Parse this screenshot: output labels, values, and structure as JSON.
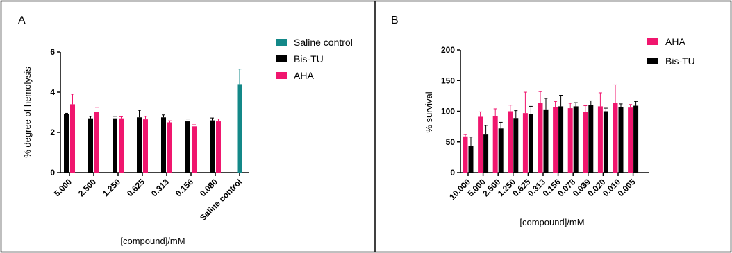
{
  "colors": {
    "aha": "#f0166e",
    "bis_tu": "#000000",
    "saline": "#138888",
    "border": "#000000"
  },
  "chart_data": [
    {
      "type": "bar",
      "panel": "A",
      "xlabel": "[compound]/mM",
      "ylabel": "% degree of hemolysis",
      "ylim": [
        0,
        6
      ],
      "yticks": [
        "0",
        "2",
        "4",
        "6"
      ],
      "grid": false,
      "legend_position": "right",
      "categories": [
        "5.000",
        "2.500",
        "1.250",
        "0.625",
        "0.313",
        "0.156",
        "0.080",
        "Saline control"
      ],
      "series": [
        {
          "name": "Saline control",
          "color": "#138888",
          "values": [
            null,
            null,
            null,
            null,
            null,
            null,
            null,
            4.4
          ],
          "errors": [
            null,
            null,
            null,
            null,
            null,
            null,
            null,
            0.75
          ]
        },
        {
          "name": "Bis-TU",
          "color": "#000000",
          "values": [
            2.9,
            2.7,
            2.7,
            2.75,
            2.75,
            2.55,
            2.6,
            null
          ],
          "errors": [
            0.05,
            0.1,
            0.1,
            0.35,
            0.12,
            0.12,
            0.12,
            null
          ]
        },
        {
          "name": "AHA",
          "color": "#f0166e",
          "values": [
            3.4,
            3.0,
            2.7,
            2.65,
            2.5,
            2.3,
            2.55,
            null
          ],
          "errors": [
            0.5,
            0.25,
            0.08,
            0.15,
            0.08,
            0.08,
            0.12,
            null
          ]
        }
      ]
    },
    {
      "type": "bar",
      "panel": "B",
      "xlabel": "[compound]/mM",
      "ylabel": "% survival",
      "ylim": [
        0,
        200
      ],
      "yticks": [
        "0",
        "50",
        "100",
        "150",
        "200"
      ],
      "grid": false,
      "legend_position": "right",
      "categories": [
        "10.000",
        "5.000",
        "2.500",
        "1.250",
        "0.625",
        "0.313",
        "0.156",
        "0.078",
        "0.039",
        "0.020",
        "0.010",
        "0.005"
      ],
      "series": [
        {
          "name": "AHA",
          "color": "#f0166e",
          "values": [
            59,
            91,
            92,
            100,
            97,
            113,
            107,
            105,
            99,
            108,
            113,
            106
          ],
          "errors": [
            3,
            8,
            12,
            10,
            34,
            19,
            9,
            8,
            10,
            22,
            30,
            5
          ]
        },
        {
          "name": "Bis-TU",
          "color": "#000000",
          "values": [
            43,
            62,
            72,
            89,
            95,
            103,
            108,
            108,
            110,
            100,
            107,
            109
          ],
          "errors": [
            15,
            15,
            10,
            12,
            13,
            18,
            18,
            6,
            7,
            5,
            5,
            7
          ]
        }
      ]
    }
  ]
}
